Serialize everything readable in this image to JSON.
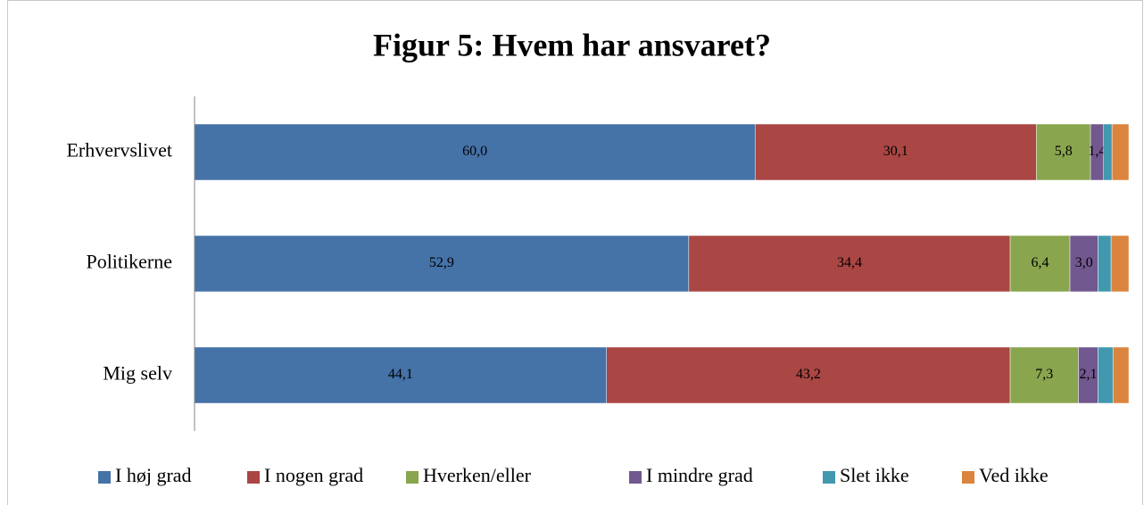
{
  "chart_data": {
    "type": "stacked_bar_horizontal",
    "title": "Figur 5: Hvem har ansvaret?",
    "categories": [
      "Erhvervslivet",
      "Politikerne",
      "Mig selv"
    ],
    "xlim": [
      0,
      100
    ],
    "legend": "bottom",
    "series": [
      {
        "name": "I høj grad",
        "color": "#4572a7",
        "values": [
          60.0,
          52.9,
          44.1
        ],
        "value_labels": [
          "60,0",
          "52,9",
          "44,1"
        ]
      },
      {
        "name": "I nogen grad",
        "color": "#aa4643",
        "values": [
          30.1,
          34.4,
          43.2
        ],
        "value_labels": [
          "30,1",
          "34,4",
          "43,2"
        ]
      },
      {
        "name": "Hverken/eller",
        "color": "#89a54e",
        "values": [
          5.8,
          6.4,
          7.3
        ],
        "value_labels": [
          "5,8",
          "6,4",
          "7,3"
        ]
      },
      {
        "name": "I mindre grad",
        "color": "#71588f",
        "values": [
          1.4,
          3.0,
          2.1
        ],
        "value_labels": [
          "1,4",
          "3,0",
          "2,1"
        ]
      },
      {
        "name": "Slet ikke",
        "color": "#4198af",
        "values": [
          0.9,
          1.4,
          1.6
        ]
      },
      {
        "name": "Ved ikke",
        "color": "#db843d",
        "values": [
          1.8,
          1.9,
          1.7
        ]
      }
    ]
  }
}
